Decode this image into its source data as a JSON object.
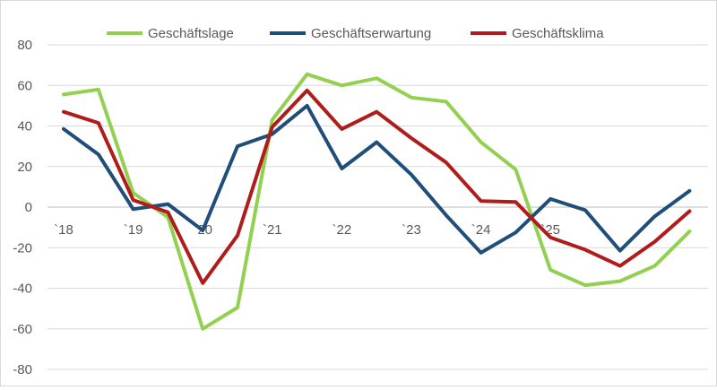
{
  "chart_data": {
    "type": "line",
    "title": "",
    "xlabel": "",
    "ylabel": "",
    "ylim": [
      -80,
      80
    ],
    "yticks": [
      "80",
      "60",
      "40",
      "20",
      "0",
      "-20",
      "-40",
      "-60",
      "-80"
    ],
    "ytick_values": [
      80,
      60,
      40,
      20,
      0,
      -20,
      -40,
      -60,
      -80
    ],
    "xtick_labels": [
      "`18",
      "`19",
      "`20",
      "`21",
      "`22",
      "`23",
      "`24",
      "`25"
    ],
    "grid": true,
    "legend_position": "top",
    "series": [
      {
        "name": "Geschäftslage",
        "color": "#92d050",
        "values": [
          55.5,
          58,
          7,
          -5,
          -60,
          -49.5,
          43,
          65.5,
          60,
          63.5,
          54,
          52,
          32,
          18.5,
          -31,
          -38.5,
          -36.5,
          -29,
          -12
        ]
      },
      {
        "name": "Geschäftserwartung",
        "color": "#1f4e79",
        "values": [
          38.5,
          26,
          -1,
          1.5,
          -11.5,
          30,
          36,
          50,
          19,
          32,
          16,
          -4,
          -22.5,
          -12.5,
          4,
          -1.5,
          -21.5,
          -4.5,
          8
        ]
      },
      {
        "name": "Geschäftsklima",
        "color": "#b01c1c",
        "values": [
          47,
          41.5,
          3.5,
          -2.5,
          -37.5,
          -14,
          39.5,
          57.5,
          38.5,
          47,
          34,
          22,
          3,
          2.5,
          -15,
          -21,
          -29,
          -17,
          -2
        ]
      }
    ]
  }
}
